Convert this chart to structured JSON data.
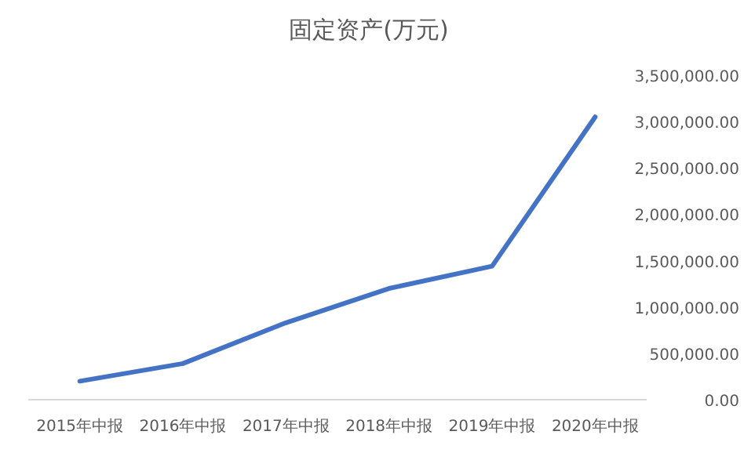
{
  "chart_data": {
    "type": "line",
    "title": "固定资产(万元)",
    "categories": [
      "2015年中报",
      "2016年中报",
      "2017年中报",
      "2018年中报",
      "2019年中报",
      "2020年中报"
    ],
    "values": [
      200000,
      390000,
      830000,
      1200000,
      1440000,
      3050000
    ],
    "color": "#4472c4",
    "ylim": [
      0,
      3500000
    ],
    "yticks": [
      {
        "value": 0,
        "label": "0.00"
      },
      {
        "value": 500000,
        "label": "500,000.00"
      },
      {
        "value": 1000000,
        "label": "1,000,000.00"
      },
      {
        "value": 1500000,
        "label": "1,500,000.00"
      },
      {
        "value": 2000000,
        "label": "2,000,000.00"
      },
      {
        "value": 2500000,
        "label": "2,500,000.00"
      },
      {
        "value": 3000000,
        "label": "3,000,000.00"
      },
      {
        "value": 3500000,
        "label": "3,500,000.00"
      }
    ]
  }
}
